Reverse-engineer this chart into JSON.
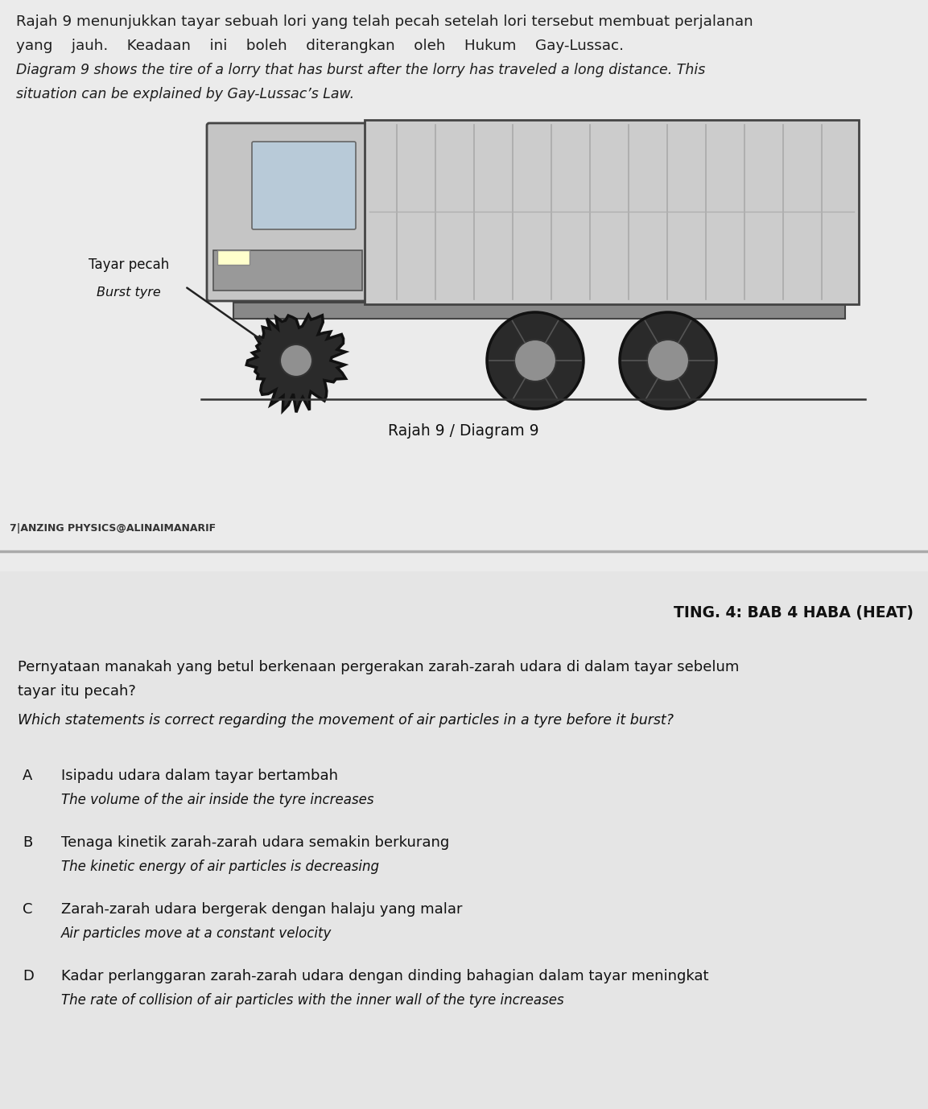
{
  "bg_color": "#e8e8e8",
  "upper_bg": "#ebebeb",
  "lower_bg": "#e5e5e5",
  "divider_color": "#aaaaaa",
  "text_color": "#1e1e1e",
  "header_line1": "Rajah 9 menunjukkan tayar sebuah lori yang telah pecah setelah lori tersebut membuat perjalanan",
  "header_line2": "yang    jauh.    Keadaan    ini    boleh    diterangkan    oleh    Hukum    Gay-Lussac.",
  "header_line3": "Diagram 9 shows the tire of a lorry that has burst after the lorry has traveled a long distance. This",
  "header_line4": "situation can be explained by Gay-Lussac’s Law.",
  "label_tayar_pecah": "Tayar pecah",
  "label_burst_tyre": "Burst tyre",
  "diagram_caption": "Rajah 9 / Diagram 9",
  "watermark": "7|AN​ZING PHYSICS@ALINAIMANARIF",
  "section_header": "TING. 4: BAB 4 HABA (HEAT)",
  "question_line1": "Pernyataan manakah yang betul berkenaan pergerakan zarah-zarah udara di dalam tayar sebelum",
  "question_line2": "tayar itu pecah?",
  "question_en": "Which statements is correct regarding the movement of air particles in a tyre before it burst?",
  "opt_A_malay": "Isipadu udara dalam tayar bertambah",
  "opt_A_en": "The volume of the air inside the tyre increases",
  "opt_B_malay": "Tenaga kinetik zarah-zarah udara semakin berkurang",
  "opt_B_en": "The kinetic energy of air particles is decreasing",
  "opt_C_malay": "Zarah-zarah udara bergerak dengan halaju yang malar",
  "opt_C_en": "Air particles move at a constant velocity",
  "opt_D_malay": "Kadar perlanggaran zarah-zarah udara dengan dinding bahagian dalam tayar meningkat",
  "opt_D_en": "The rate of collision of air particles with the inner wall of the tyre increases",
  "truck_color": "#c8c8c8",
  "truck_line": "#555555",
  "wheel_dark": "#2a2a2a",
  "wheel_hub": "#909090"
}
